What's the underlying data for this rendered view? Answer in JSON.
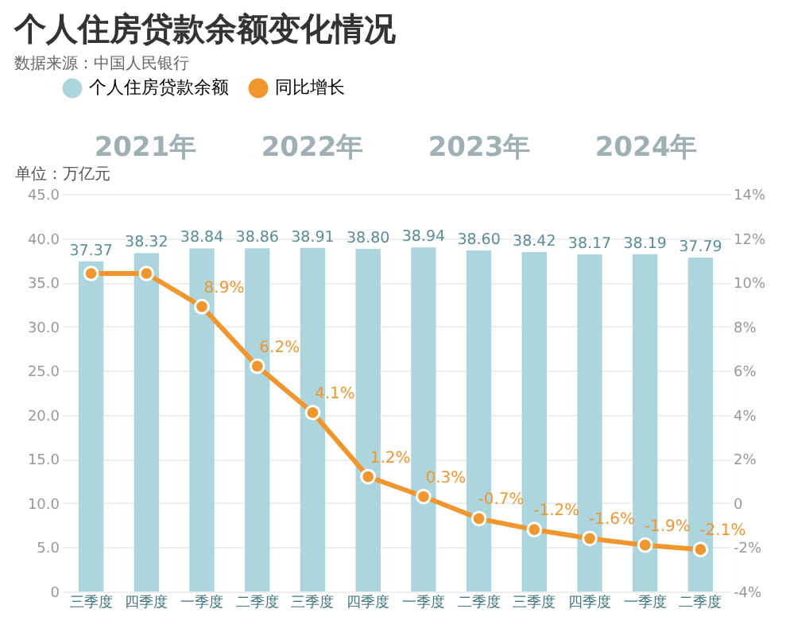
{
  "chart_data": {
    "type": "bar",
    "title": "个人住房贷款余额变化情况",
    "ylabel": "单位：万亿元",
    "annotations": [
      "数据来源：中国人民银行",
      "2021年",
      "2022年",
      "2023年",
      "2024年"
    ],
    "categories": [
      "三季度",
      "四季度",
      "一季度",
      "二季度",
      "三季度",
      "四季度",
      "一季度",
      "二季度",
      "三季度",
      "四季度",
      "一季度",
      "二季度"
    ],
    "series": [
      {
        "name": "个人住房贷款余额",
        "color": "#acd5de",
        "values": [
          37.37,
          38.32,
          38.84,
          38.86,
          38.91,
          38.8,
          38.94,
          38.6,
          38.42,
          38.17,
          38.19,
          37.79
        ],
        "value_labels": [
          "37.37",
          "38.32",
          "38.84",
          "38.86",
          "38.91",
          "38.80",
          "38.94",
          "38.60",
          "38.42",
          "38.17",
          "38.19",
          "37.79"
        ]
      },
      {
        "name": "同比增长",
        "type": "line",
        "axis": "y2",
        "color": "#f0962e",
        "values": [
          10.4,
          10.4,
          8.9,
          6.2,
          4.1,
          1.2,
          0.3,
          -0.7,
          -1.2,
          -1.6,
          -1.9,
          -2.1
        ],
        "value_labels": [
          null,
          null,
          "8.9%",
          "6.2%",
          "4.1%",
          "1.2%",
          "0.3%",
          "-0.7%",
          "-1.2%",
          "-1.6%",
          "-1.9%",
          "-2.1%"
        ]
      }
    ],
    "ylim": [
      0,
      45
    ],
    "yticks": [
      0,
      {
        "value": 5,
        "label": "5.0"
      },
      {
        "value": 10,
        "label": "10.0"
      },
      {
        "value": 15,
        "label": "15.0"
      },
      {
        "value": 20,
        "label": "20.0"
      },
      {
        "value": 25,
        "label": "25.0"
      },
      {
        "value": 30,
        "label": "30.0"
      },
      {
        "value": 35,
        "label": "35.0"
      },
      {
        "value": 40,
        "label": "40.0"
      },
      {
        "value": 45,
        "label": "45.0"
      }
    ],
    "y2lim": [
      -4,
      14
    ],
    "y2ticks": [
      {
        "value": -4,
        "label": "-4%"
      },
      {
        "value": -2,
        "label": "-2%"
      },
      0,
      {
        "value": 2,
        "label": "2%"
      },
      {
        "value": 4,
        "label": "4%"
      },
      {
        "value": 6,
        "label": "6%"
      },
      {
        "value": 8,
        "label": "8%"
      },
      {
        "value": 10,
        "label": "10%"
      },
      {
        "value": 12,
        "label": "12%"
      },
      {
        "value": 14,
        "label": "14%"
      }
    ],
    "grid": "y",
    "legend": "top",
    "marker": "circle",
    "line_style": "solid"
  }
}
